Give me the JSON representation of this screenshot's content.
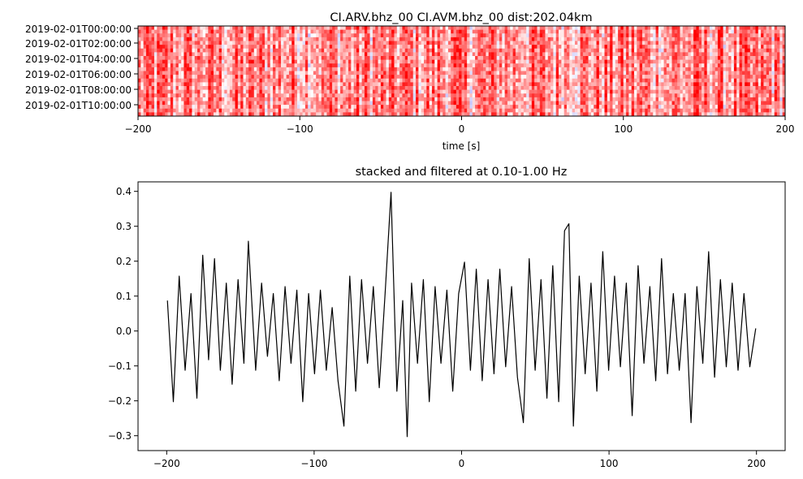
{
  "chart_data": [
    {
      "type": "heatmap",
      "title": "CI.ARV.bhz_00 CI.AVM.bhz_00  dist:202.04km",
      "xlabel": "time [s]",
      "ylabel": "",
      "xlim": [
        -200,
        200
      ],
      "x_ticks": [
        -200,
        -100,
        0,
        100,
        200
      ],
      "x_tick_labels": [
        "−200",
        "−100",
        "0",
        "100",
        "200"
      ],
      "y_tick_labels": [
        "2019-02-01T00:00:00",
        "2019-02-01T02:00:00",
        "2019-02-01T04:00:00",
        "2019-02-01T06:00:00",
        "2019-02-01T08:00:00",
        "2019-02-01T10:00:00"
      ],
      "colormap": [
        "#0000ff",
        "#ffffff",
        "#ff0000"
      ],
      "grid": false,
      "legend": "none"
    },
    {
      "type": "line",
      "title": "stacked and filtered at 0.10-1.00 Hz",
      "xlabel": "",
      "ylabel": "",
      "xlim": [
        -220,
        220
      ],
      "ylim": [
        -0.35,
        0.42
      ],
      "x_ticks": [
        -200,
        -100,
        0,
        100,
        200
      ],
      "x_tick_labels": [
        "−200",
        "−100",
        "0",
        "100",
        "200"
      ],
      "y_ticks": [
        -0.3,
        -0.2,
        -0.1,
        0.0,
        0.1,
        0.2,
        0.3,
        0.4
      ],
      "y_tick_labels": [
        "−0.3",
        "−0.2",
        "−0.1",
        "0.0",
        "0.1",
        "0.2",
        "0.3",
        "0.4"
      ],
      "line_color": "#000000",
      "grid": false,
      "legend": "none",
      "series": [
        {
          "x": [
            -200,
            -196,
            -192,
            -188,
            -184,
            -180,
            -176,
            -172,
            -168,
            -164,
            -160,
            -156,
            -152,
            -148,
            -145,
            -140,
            -136,
            -132,
            -128,
            -124,
            -120,
            -116,
            -112,
            -108,
            -104,
            -100,
            -96,
            -92,
            -88,
            -84,
            -80,
            -76,
            -72,
            -68,
            -64,
            -60,
            -56,
            -52,
            -48,
            -44,
            -40,
            -37,
            -34,
            -30,
            -26,
            -22,
            -18,
            -14,
            -10,
            -6,
            -2,
            2,
            6,
            10,
            14,
            18,
            22,
            26,
            30,
            34,
            38,
            42,
            46,
            50,
            54,
            58,
            62,
            66,
            70,
            73,
            76,
            80,
            84,
            88,
            92,
            96,
            100,
            104,
            108,
            112,
            116,
            120,
            124,
            128,
            132,
            136,
            140,
            144,
            148,
            152,
            156,
            160,
            164,
            168,
            172,
            176,
            180,
            184,
            188,
            192,
            196,
            200
          ],
          "y": [
            0.08,
            -0.21,
            0.15,
            -0.12,
            0.1,
            -0.2,
            0.21,
            -0.09,
            0.2,
            -0.12,
            0.13,
            -0.16,
            0.14,
            -0.1,
            0.25,
            -0.12,
            0.13,
            -0.08,
            0.1,
            -0.15,
            0.12,
            -0.1,
            0.11,
            -0.21,
            0.1,
            -0.13,
            0.11,
            -0.12,
            0.06,
            -0.15,
            -0.28,
            0.15,
            -0.18,
            0.14,
            -0.1,
            0.12,
            -0.17,
            0.1,
            0.39,
            -0.18,
            0.08,
            -0.31,
            0.13,
            -0.1,
            0.14,
            -0.21,
            0.12,
            -0.1,
            0.11,
            -0.18,
            0.1,
            0.19,
            -0.12,
            0.17,
            -0.15,
            0.14,
            -0.13,
            0.17,
            -0.11,
            0.12,
            -0.14,
            -0.27,
            0.2,
            -0.12,
            0.14,
            -0.2,
            0.18,
            -0.21,
            0.28,
            0.3,
            -0.28,
            0.15,
            -0.13,
            0.13,
            -0.18,
            0.22,
            -0.12,
            0.15,
            -0.11,
            0.13,
            -0.25,
            0.18,
            -0.1,
            0.12,
            -0.15,
            0.2,
            -0.13,
            0.1,
            -0.12,
            0.1,
            -0.27,
            0.12,
            -0.1,
            0.22,
            -0.14,
            0.14,
            -0.11,
            0.13,
            -0.12,
            0.1,
            -0.11,
            0.0
          ]
        }
      ]
    }
  ]
}
